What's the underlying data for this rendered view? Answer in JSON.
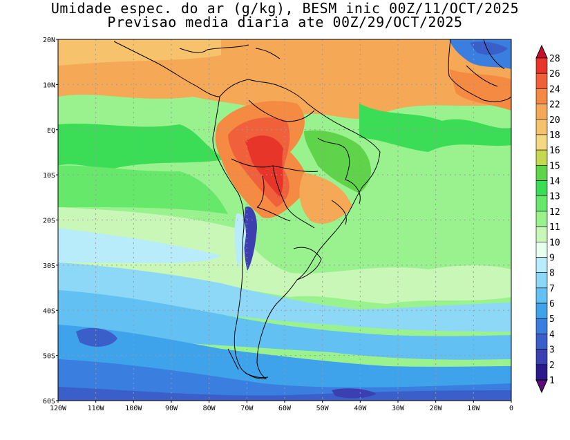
{
  "title": {
    "line1": "Umidade espec. do ar (g/kg), BESM inic 00Z/11/OCT/2025",
    "line2": "Previsao media diaria ate 00Z/29/OCT/2025"
  },
  "axes": {
    "lat_labels": [
      "20N",
      "10N",
      "EQ",
      "10S",
      "20S",
      "30S",
      "40S",
      "50S",
      "60S"
    ],
    "lon_labels": [
      "120W",
      "110W",
      "100W",
      "90W",
      "80W",
      "70W",
      "60W",
      "50W",
      "40W",
      "30W",
      "20W",
      "10W",
      "0"
    ],
    "lat_range": [
      -60,
      20
    ],
    "lon_range": [
      -120,
      0
    ],
    "grid": "dotted"
  },
  "colorbar": {
    "levels": [
      "28",
      "26",
      "24",
      "22",
      "20",
      "18",
      "16",
      "15",
      "14",
      "13",
      "12",
      "11",
      "10",
      "9",
      "8",
      "7",
      "6",
      "5",
      "4",
      "3",
      "2",
      "1"
    ],
    "colors": [
      "#c8102e",
      "#e8352a",
      "#f0603a",
      "#f58a42",
      "#f5a855",
      "#f7c26c",
      "#f5d882",
      "#c6d84f",
      "#5fd34a",
      "#3bdd57",
      "#66e86a",
      "#9af28f",
      "#c8f7b8",
      "#e6ffee",
      "#b8ecfb",
      "#8ed8f7",
      "#62c0f2",
      "#3fa3ec",
      "#3a7ee0",
      "#3b5fc9",
      "#3b3fb0",
      "#2a1a8a",
      "#5a0a7a"
    ]
  },
  "palette": {
    "land_outline": "#000000",
    "grid": "#9a9a9a",
    "ocean_warm": "#f5a855",
    "ocean_cool": "#3a7ee0"
  }
}
